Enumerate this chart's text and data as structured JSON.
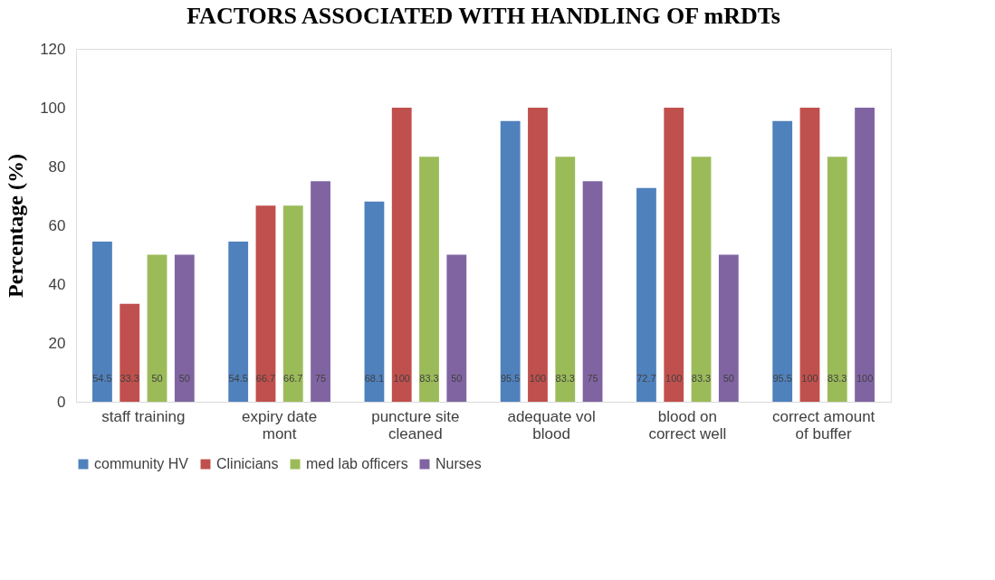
{
  "chart_data": {
    "type": "bar",
    "title": "FACTORS ASSOCIATED WITH HANDLING OF mRDTs",
    "ylabel": "Percentage (%)",
    "categories": [
      "staff training",
      "expiry date mont",
      "puncture site cleaned",
      "adequate vol blood",
      "blood on correct well",
      "correct amount of buffer"
    ],
    "series": [
      {
        "name": "community HV",
        "color": "#4f81bd",
        "values": [
          54.5,
          54.5,
          68.1,
          95.5,
          72.7,
          95.5
        ]
      },
      {
        "name": "Clinicians",
        "color": "#c0504d",
        "values": [
          33.3,
          66.7,
          100,
          100,
          100,
          100
        ]
      },
      {
        "name": "med lab officers",
        "color": "#9bbb59",
        "values": [
          50,
          66.7,
          83.3,
          83.3,
          83.3,
          83.3
        ]
      },
      {
        "name": "Nurses",
        "color": "#8064a2",
        "values": [
          50,
          75,
          50,
          75,
          50,
          100
        ]
      }
    ],
    "ylim": [
      0,
      120
    ],
    "yticks": [
      0,
      20,
      40,
      60,
      80,
      100,
      120
    ],
    "grid": false,
    "legend": "bottom",
    "data_labels": true
  }
}
